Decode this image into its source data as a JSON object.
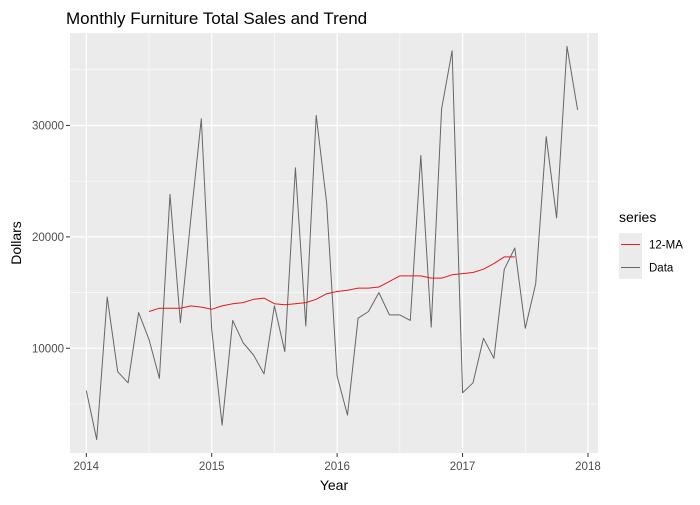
{
  "chart_data": {
    "type": "line",
    "title": "Monthly Furniture Total Sales and Trend",
    "xlabel": "Year",
    "ylabel": "Dollars",
    "xlim": [
      2013.87,
      2018.08
    ],
    "ylim": [
      600,
      38300
    ],
    "x_ticks": [
      2014,
      2015,
      2016,
      2017,
      2018
    ],
    "y_ticks": [
      10000,
      20000,
      30000
    ],
    "grid": true,
    "legend": {
      "title": "series",
      "placement": "right"
    },
    "colors": {
      "12-MA": "#e41a1c",
      "Data": "#666666",
      "panel": "#ebebeb",
      "grid": "#ffffff"
    },
    "series": [
      {
        "name": "Data",
        "color": "#666666",
        "x": [
          2014.0,
          2014.083,
          2014.167,
          2014.25,
          2014.333,
          2014.417,
          2014.5,
          2014.583,
          2014.667,
          2014.75,
          2014.833,
          2014.917,
          2015.0,
          2015.083,
          2015.167,
          2015.25,
          2015.333,
          2015.417,
          2015.5,
          2015.583,
          2015.667,
          2015.75,
          2015.833,
          2015.917,
          2016.0,
          2016.083,
          2016.167,
          2016.25,
          2016.333,
          2016.417,
          2016.5,
          2016.583,
          2016.667,
          2016.75,
          2016.833,
          2016.917,
          2017.0,
          2017.083,
          2017.167,
          2017.25,
          2017.333,
          2017.417,
          2017.5,
          2017.583,
          2017.667,
          2017.75,
          2017.833,
          2017.917
        ],
        "values": [
          6200,
          1800,
          14600,
          7900,
          6900,
          13200,
          10800,
          7300,
          23800,
          12300,
          21600,
          30600,
          11700,
          3100,
          12500,
          10500,
          9400,
          7700,
          13800,
          9700,
          26200,
          12000,
          30900,
          23000,
          7500,
          4000,
          12700,
          13300,
          15000,
          13000,
          13000,
          12500,
          27300,
          11900,
          31500,
          36700,
          6000,
          6900,
          10900,
          9100,
          17100,
          19000,
          11800,
          15800,
          29000,
          21700,
          37100,
          31400
        ]
      },
      {
        "name": "12-MA",
        "color": "#e41a1c",
        "x": [
          2014.5,
          2014.583,
          2014.667,
          2014.75,
          2014.833,
          2014.917,
          2015.0,
          2015.083,
          2015.167,
          2015.25,
          2015.333,
          2015.417,
          2015.5,
          2015.583,
          2015.667,
          2015.75,
          2015.833,
          2015.917,
          2016.0,
          2016.083,
          2016.167,
          2016.25,
          2016.333,
          2016.417,
          2016.5,
          2016.583,
          2016.667,
          2016.75,
          2016.833,
          2016.917,
          2017.0,
          2017.083,
          2017.167,
          2017.25,
          2017.333,
          2017.417
        ],
        "values": [
          13300,
          13600,
          13600,
          13600,
          13800,
          13700,
          13500,
          13800,
          14000,
          14100,
          14400,
          14500,
          14000,
          13900,
          14000,
          14100,
          14400,
          14900,
          15100,
          15200,
          15400,
          15400,
          15500,
          16000,
          16500,
          16500,
          16500,
          16300,
          16300,
          16600,
          16700,
          16800,
          17100,
          17600,
          18200,
          18200
        ]
      }
    ]
  }
}
